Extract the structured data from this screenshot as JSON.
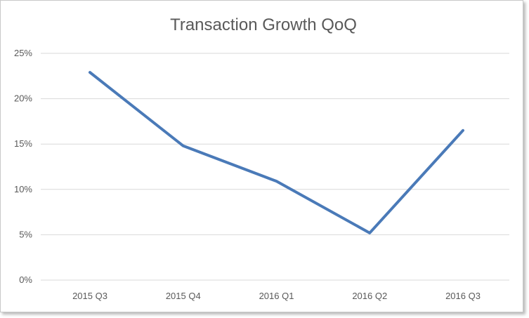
{
  "chart_data": {
    "type": "line",
    "title": "Transaction Growth QoQ",
    "xlabel": "",
    "ylabel": "",
    "categories": [
      "2015 Q3",
      "2015 Q4",
      "2016 Q1",
      "2016 Q2",
      "2016 Q3"
    ],
    "series": [
      {
        "values": [
          0.229,
          0.148,
          0.109,
          0.052,
          0.165
        ],
        "color": "#4a7ab8"
      }
    ],
    "ylim": [
      0,
      0.25
    ],
    "y_ticks": [
      0,
      0.05,
      0.1,
      0.15,
      0.2,
      0.25
    ],
    "y_tick_labels": [
      "0%",
      "5%",
      "10%",
      "15%",
      "20%",
      "25%"
    ],
    "grid": true,
    "legend": "none"
  }
}
